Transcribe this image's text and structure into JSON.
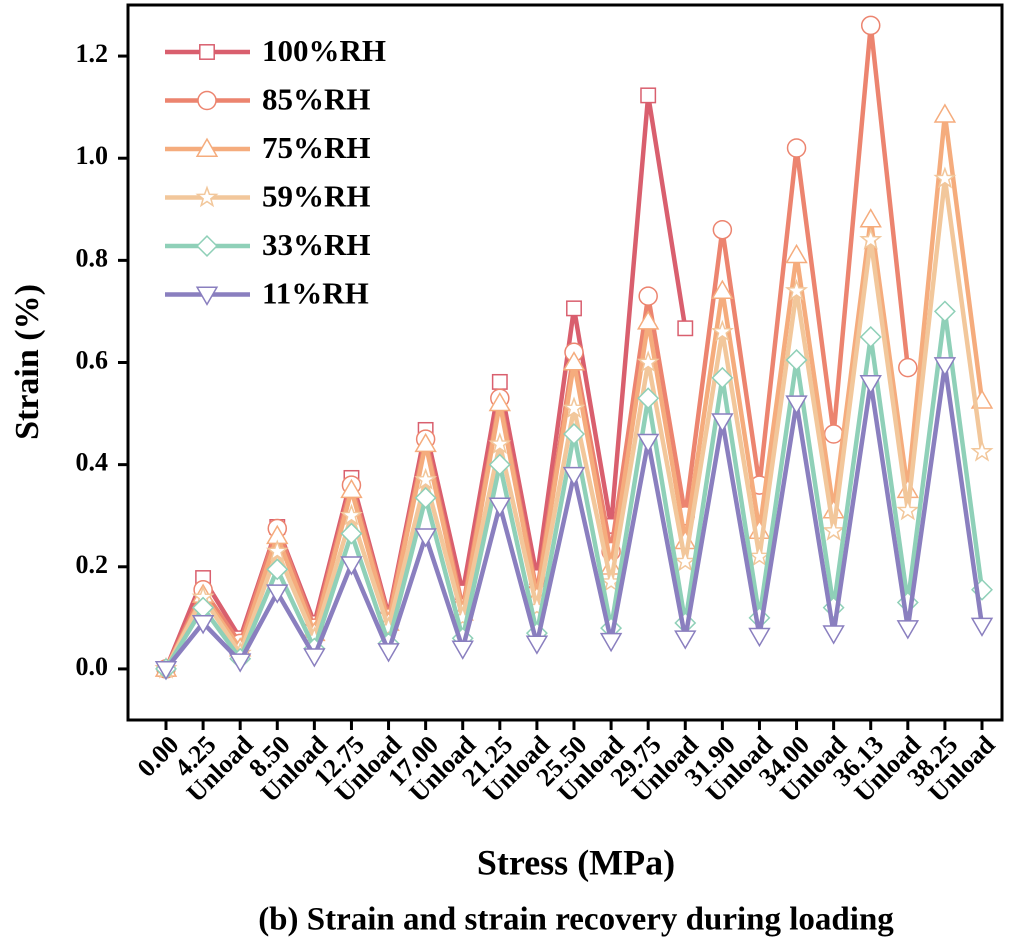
{
  "chart_data": {
    "type": "line",
    "x_label": "Stress (MPa)",
    "y_label": "Strain (%)",
    "caption": "(b) Strain and strain recovery during loading",
    "categories": [
      "0.00",
      "4.25",
      "Unload",
      "8.50",
      "Unload",
      "12.75",
      "Unload",
      "17.00",
      "Unload",
      "21.25",
      "Unload",
      "25.50",
      "Unload",
      "29.75",
      "Unload",
      "31.90",
      "Unload",
      "34.00",
      "Unload",
      "36.13",
      "Unload",
      "38.25",
      "Unload"
    ],
    "ylim": [
      -0.1,
      1.3
    ],
    "yticks": [
      {
        "value": 0,
        "label": "0.0"
      },
      0.2,
      0.4,
      0.6,
      0.8,
      {
        "value": 1,
        "label": "1.0"
      },
      1.2
    ],
    "legend": "top-left",
    "series": [
      {
        "name": "100%RH",
        "color": "#d95f6e",
        "marker": "square",
        "values": [
          0,
          0.178,
          0.06,
          0.278,
          0.09,
          0.374,
          0.106,
          0.468,
          0.15,
          0.562,
          0.18,
          0.706,
          0.28,
          1.123,
          0.667,
          null,
          null,
          null,
          null,
          null,
          null,
          null,
          null
        ]
      },
      {
        "name": "85%RH",
        "color": "#ec846f",
        "marker": "circle",
        "values": [
          0,
          0.155,
          0.05,
          0.275,
          0.08,
          0.36,
          0.1,
          0.45,
          0.12,
          0.53,
          0.15,
          0.62,
          0.23,
          0.73,
          0.3,
          0.86,
          0.36,
          1.02,
          0.46,
          1.26,
          0.59,
          null,
          null
        ]
      },
      {
        "name": "75%RH",
        "color": "#f5ac7d",
        "marker": "triangle-up",
        "values": [
          0,
          0.145,
          0.04,
          0.26,
          0.07,
          0.35,
          0.09,
          0.44,
          0.11,
          0.52,
          0.14,
          0.6,
          0.2,
          0.68,
          0.25,
          0.74,
          0.27,
          0.81,
          0.31,
          0.88,
          0.35,
          1.085,
          0.525
        ]
      },
      {
        "name": "59%RH",
        "color": "#f2c79b",
        "marker": "star",
        "values": [
          0,
          0.14,
          0.03,
          0.23,
          0.06,
          0.3,
          0.08,
          0.37,
          0.1,
          0.44,
          0.12,
          0.51,
          0.17,
          0.6,
          0.21,
          0.66,
          0.22,
          0.74,
          0.27,
          0.84,
          0.31,
          0.96,
          0.425
        ]
      },
      {
        "name": "33%RH",
        "color": "#8fd0b8",
        "marker": "diamond",
        "values": [
          0,
          0.12,
          0.02,
          0.195,
          0.04,
          0.265,
          0.05,
          0.335,
          0.06,
          0.4,
          0.07,
          0.46,
          0.08,
          0.53,
          0.09,
          0.57,
          0.1,
          0.605,
          0.12,
          0.65,
          0.13,
          0.7,
          0.155
        ]
      },
      {
        "name": "11%RH",
        "color": "#8a7fbf",
        "marker": "triangle-down",
        "values": [
          0,
          0.09,
          0.015,
          0.15,
          0.025,
          0.205,
          0.035,
          0.26,
          0.04,
          0.32,
          0.05,
          0.38,
          0.055,
          0.445,
          0.06,
          0.485,
          0.065,
          0.52,
          0.07,
          0.56,
          0.08,
          0.595,
          0.085
        ]
      }
    ]
  }
}
